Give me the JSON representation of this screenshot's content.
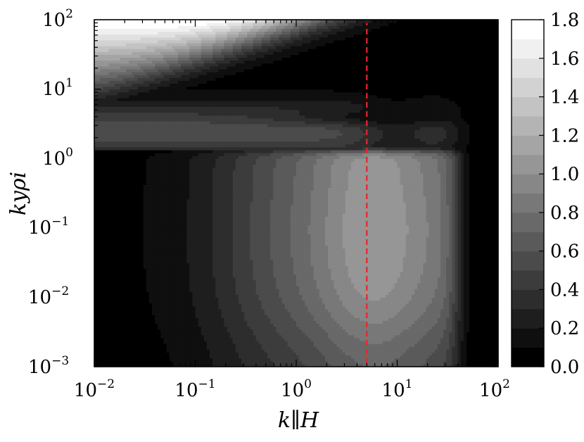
{
  "chart_data": {
    "type": "heatmap",
    "title": "",
    "xlabel": "k∥H",
    "ylabel": "kyρi",
    "xscale": "log",
    "yscale": "log",
    "xlim": [
      0.01,
      100
    ],
    "ylim": [
      0.001,
      100
    ],
    "x_tick_values": [
      0.01,
      0.1,
      1,
      10,
      100
    ],
    "x_tick_labels": [
      {
        "base": "10",
        "exp": "−2"
      },
      {
        "base": "10",
        "exp": "−1"
      },
      {
        "base": "10",
        "exp": "0"
      },
      {
        "base": "10",
        "exp": "1"
      },
      {
        "base": "10",
        "exp": "2"
      }
    ],
    "y_tick_values": [
      0.001,
      0.01,
      0.1,
      1,
      10,
      100
    ],
    "y_tick_labels": [
      {
        "base": "10",
        "exp": "−3"
      },
      {
        "base": "10",
        "exp": "−2"
      },
      {
        "base": "10",
        "exp": "−1"
      },
      {
        "base": "10",
        "exp": "0"
      },
      {
        "base": "10",
        "exp": "1"
      },
      {
        "base": "10",
        "exp": "2"
      }
    ],
    "colormap": "grayscale",
    "colorbar": {
      "min": 0.0,
      "max": 1.8,
      "levels": 18,
      "tick_values": [
        0.0,
        0.2,
        0.4,
        0.6,
        0.8,
        1.0,
        1.2,
        1.4,
        1.6,
        1.8
      ],
      "tick_labels": [
        "0.0",
        "0.2",
        "0.4",
        "0.6",
        "0.8",
        "1.0",
        "1.2",
        "1.4",
        "1.6",
        "1.8"
      ]
    },
    "reference_line": {
      "axis": "x",
      "value": 5,
      "color": "#e8262a",
      "style": "dashed"
    },
    "grid": false
  }
}
